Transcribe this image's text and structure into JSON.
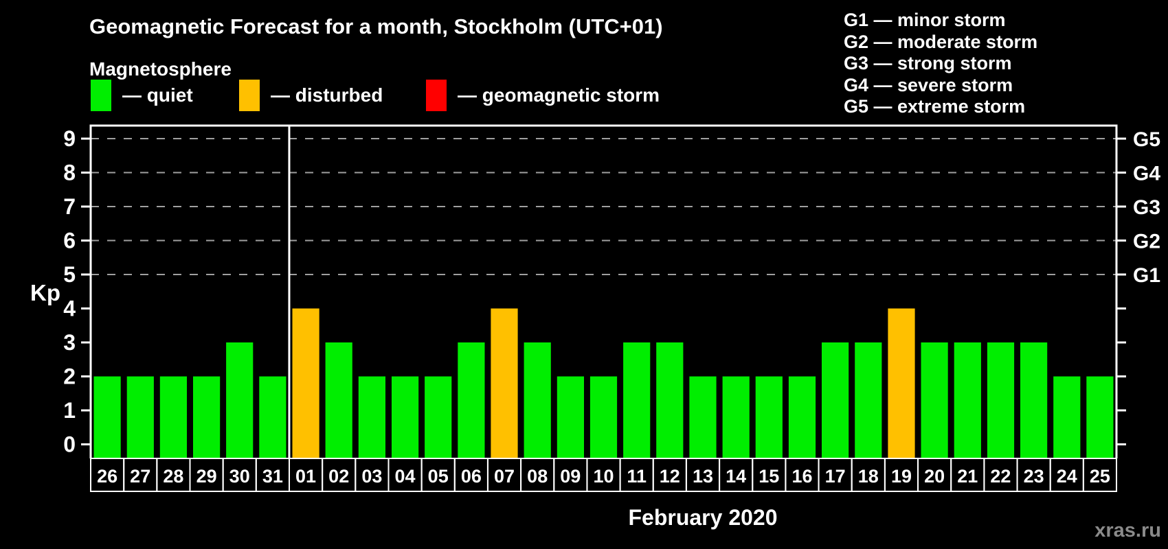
{
  "title": "Geomagnetic Forecast for a month, Stockholm (UTC+01)",
  "subtitle": "Magnetosphere",
  "legend": {
    "items": [
      {
        "key": "quiet",
        "label": "— quiet",
        "color": "#00ee00"
      },
      {
        "key": "disturbed",
        "label": "— disturbed",
        "color": "#ffc000"
      },
      {
        "key": "storm",
        "label": "— geomagnetic storm",
        "color": "#ff0000"
      }
    ]
  },
  "storm_scale_legend": [
    "G1 — minor storm",
    "G2 — moderate storm",
    "G3 — strong storm",
    "G4 — severe storm",
    "G5 — extreme storm"
  ],
  "watermark": "xras.ru",
  "chart_data": {
    "type": "bar",
    "title": "Geomagnetic Forecast for a month, Stockholm (UTC+01)",
    "ylabel": "Kp",
    "xlabel": "February 2020",
    "ylim": [
      0,
      9.4
    ],
    "yticks": [
      0,
      1,
      2,
      3,
      4,
      5,
      6,
      7,
      8,
      9
    ],
    "gridlines_at": [
      5,
      6,
      7,
      8,
      9
    ],
    "grid_style": "dashed gray horizontal lines at storm levels only",
    "right_axis": [
      {
        "kp": 5,
        "label": "G1"
      },
      {
        "kp": 6,
        "label": "G2"
      },
      {
        "kp": 7,
        "label": "G3"
      },
      {
        "kp": 8,
        "label": "G4"
      },
      {
        "kp": 9,
        "label": "G5"
      }
    ],
    "categories": [
      "26",
      "27",
      "28",
      "29",
      "30",
      "31",
      "01",
      "02",
      "03",
      "04",
      "05",
      "06",
      "07",
      "08",
      "09",
      "10",
      "11",
      "12",
      "13",
      "14",
      "15",
      "16",
      "17",
      "18",
      "19",
      "20",
      "21",
      "22",
      "23",
      "24",
      "25"
    ],
    "values": [
      2,
      2,
      2,
      2,
      3,
      2,
      4,
      3,
      2,
      2,
      2,
      3,
      4,
      3,
      2,
      2,
      3,
      3,
      2,
      2,
      2,
      2,
      3,
      3,
      4,
      3,
      3,
      3,
      3,
      2,
      2
    ],
    "statuses": [
      "quiet",
      "quiet",
      "quiet",
      "quiet",
      "quiet",
      "quiet",
      "disturbed",
      "quiet",
      "quiet",
      "quiet",
      "quiet",
      "quiet",
      "disturbed",
      "quiet",
      "quiet",
      "quiet",
      "quiet",
      "quiet",
      "quiet",
      "quiet",
      "quiet",
      "quiet",
      "quiet",
      "quiet",
      "disturbed",
      "quiet",
      "quiet",
      "quiet",
      "quiet",
      "quiet",
      "quiet"
    ],
    "status_colors": {
      "quiet": "#00ee00",
      "disturbed": "#ffc000",
      "storm": "#ff0000"
    },
    "month_separator_after": "31",
    "legend_position": "top"
  }
}
